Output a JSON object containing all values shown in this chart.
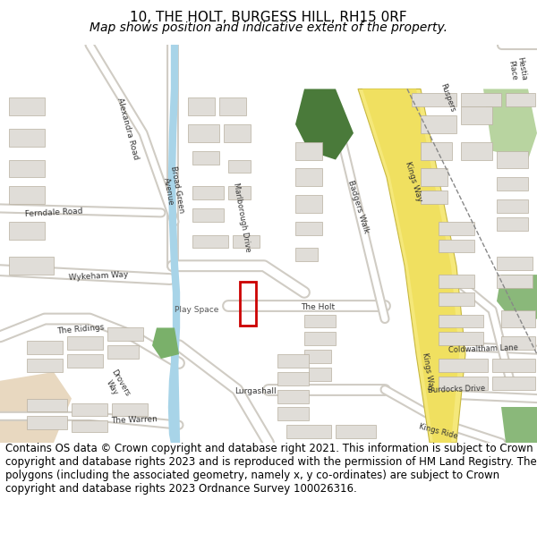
{
  "title_line1": "10, THE HOLT, BURGESS HILL, RH15 0RF",
  "title_line2": "Map shows position and indicative extent of the property.",
  "footer_text": "Contains OS data © Crown copyright and database right 2021. This information is subject to Crown copyright and database rights 2023 and is reproduced with the permission of HM Land Registry. The polygons (including the associated geometry, namely x, y co-ordinates) are subject to Crown copyright and database rights 2023 Ordnance Survey 100026316.",
  "bg_color": "#ffffff",
  "map_bg": "#f2efe9",
  "water_color": "#a8d4e8",
  "green_color": "#7ab06a",
  "dark_green": "#4a7a3a",
  "red_box": "#cc0000",
  "title_fontsize": 11,
  "subtitle_fontsize": 10,
  "footer_fontsize": 8.5,
  "fig_width": 6.0,
  "fig_height": 6.25
}
